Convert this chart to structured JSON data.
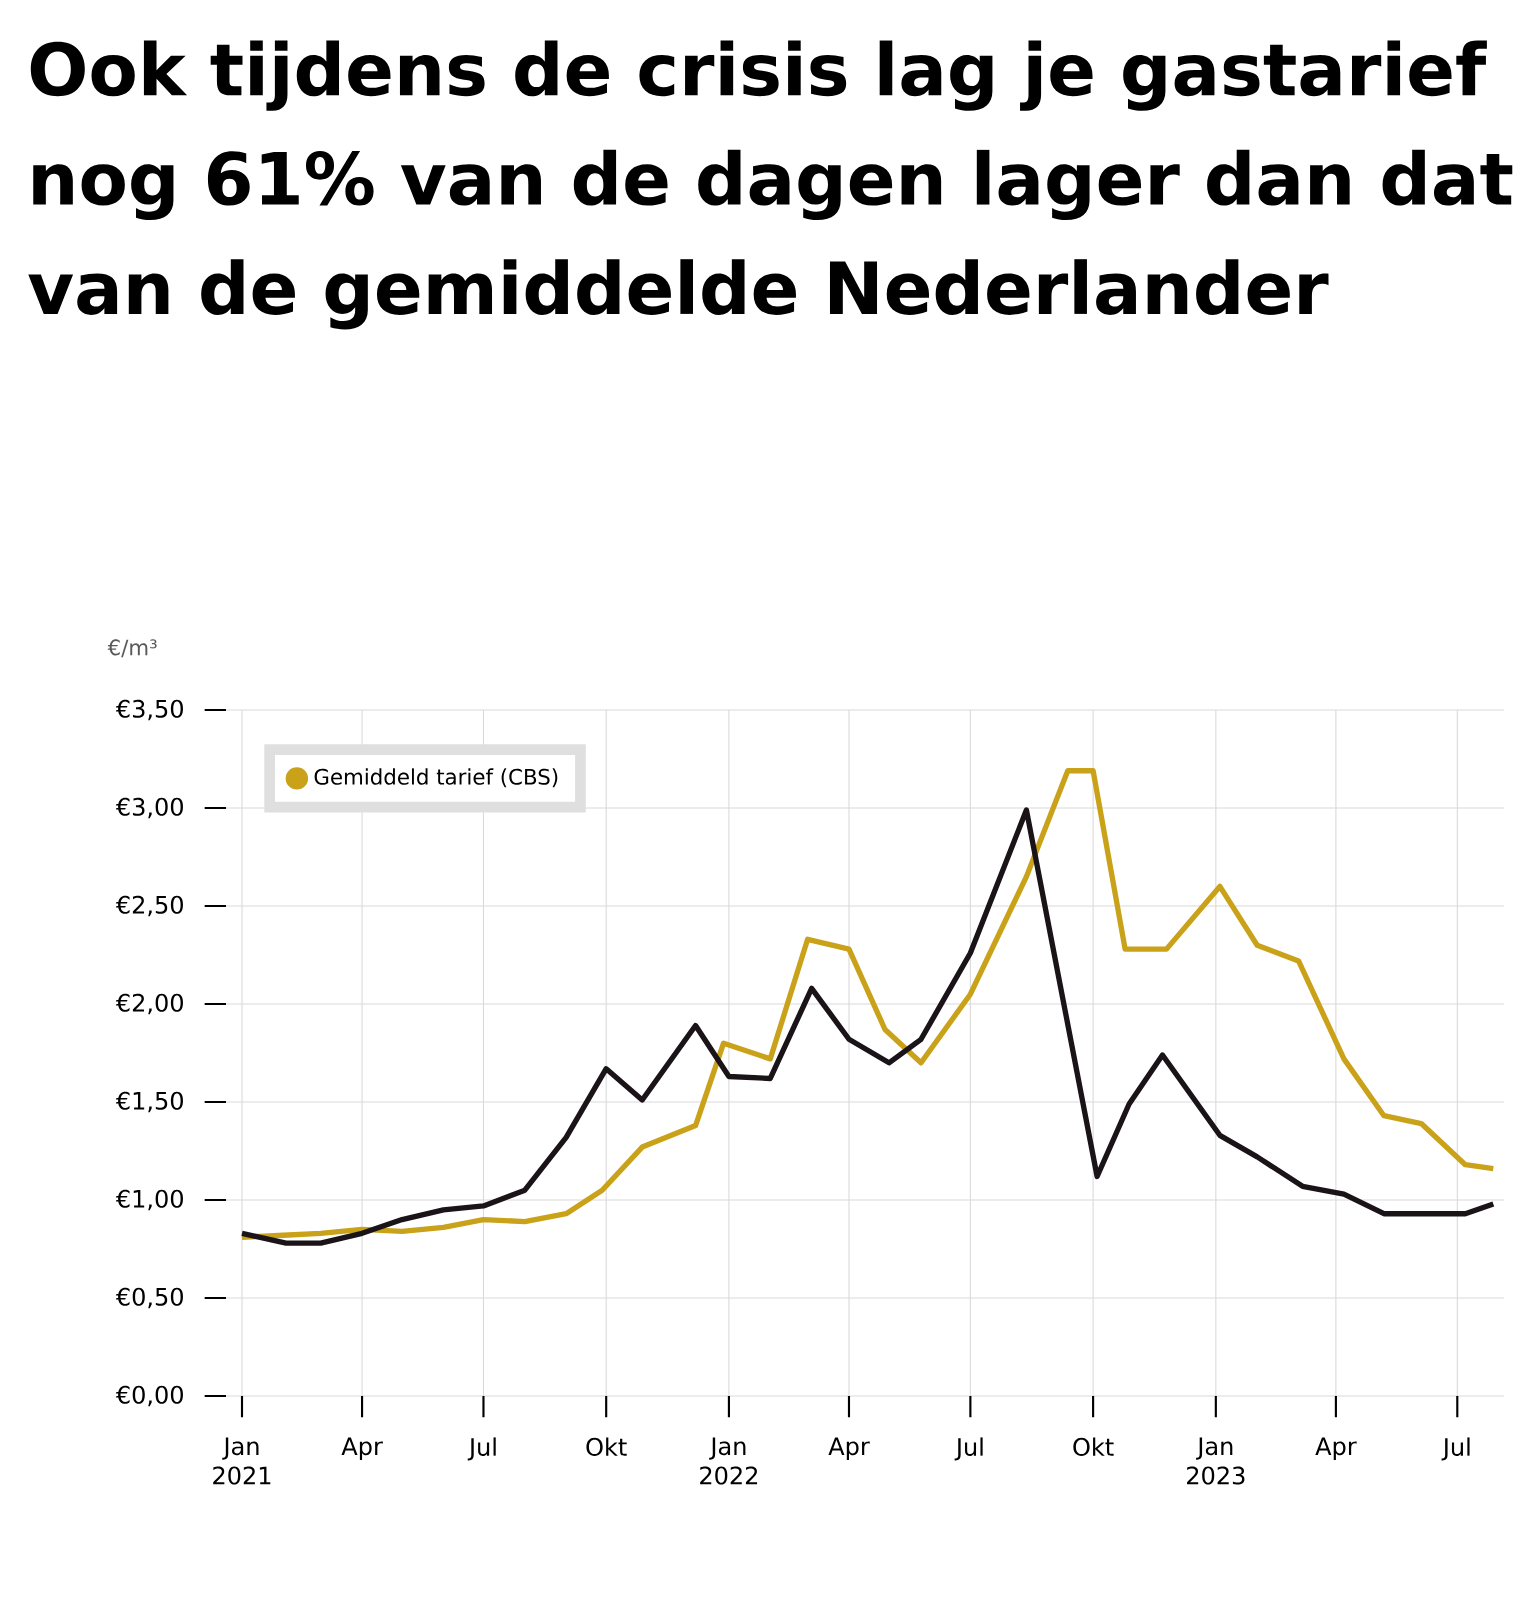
{
  "chart_data": {
    "type": "line",
    "title": "Ook tijdens de crisis lag je gastarief nog 61% van de dagen lager dan dat van de gemiddelde Nederlander",
    "ylabel": "€/m³",
    "xlim": [
      "2020-12-20",
      "2023-08-05"
    ],
    "xticks": [
      {
        "value": "2021-01-01",
        "label": "Jan 2021"
      },
      {
        "value": "2021-04-01",
        "label": "Apr"
      },
      {
        "value": "2021-07-01",
        "label": "Jul"
      },
      {
        "value": "2021-10-01",
        "label": "Okt"
      },
      {
        "value": "2022-01-01",
        "label": "Jan 2022"
      },
      {
        "value": "2022-04-01",
        "label": "Apr"
      },
      {
        "value": "2022-07-01",
        "label": "Jul"
      },
      {
        "value": "2022-10-01",
        "label": "Okt"
      },
      {
        "value": "2023-01-01",
        "label": "Jan 2023"
      },
      {
        "value": "2023-04-01",
        "label": "Apr"
      },
      {
        "value": "2023-07-01",
        "label": "Jul"
      }
    ],
    "ylim": [
      0,
      3.5
    ],
    "yticks": [
      {
        "value": 0,
        "label": "€0,00"
      },
      {
        "value": 0.5,
        "label": "€0,50"
      },
      {
        "value": 1,
        "label": "€1,00"
      },
      {
        "value": 1.5,
        "label": "€1,50"
      },
      {
        "value": 2,
        "label": "€2,00"
      },
      {
        "value": 2.5,
        "label": "€2,50"
      },
      {
        "value": 3,
        "label": "€3,00"
      },
      {
        "value": 3.5,
        "label": "€3,50"
      }
    ],
    "grid": true,
    "legend": "top left",
    "series": [
      {
        "name": "Gemiddeld tarief (CBS)",
        "color": "#c9a21a",
        "x": [
          "2021-01-01",
          "2021-02-01",
          "2021-03-01",
          "2021-04-01",
          "2021-05-01",
          "2021-06-01",
          "2021-07-01",
          "2021-08-01",
          "2021-09-01",
          "2021-09-28",
          "2021-10-28",
          "2021-12-07",
          "2021-12-28",
          "2022-02-01",
          "2022-03-01",
          "2022-04-01",
          "2022-04-28",
          "2022-05-25",
          "2022-07-01",
          "2022-08-12",
          "2022-09-12",
          "2022-10-01",
          "2022-10-25",
          "2022-11-25",
          "2023-01-04",
          "2023-02-01",
          "2023-03-04",
          "2023-04-07",
          "2023-05-07",
          "2023-06-04",
          "2023-07-07",
          "2023-07-28"
        ],
        "values": [
          0.81,
          0.82,
          0.83,
          0.85,
          0.84,
          0.86,
          0.9,
          0.89,
          0.93,
          1.05,
          1.27,
          1.38,
          1.8,
          1.72,
          2.33,
          2.28,
          1.87,
          1.7,
          2.05,
          2.65,
          3.19,
          3.19,
          2.28,
          2.28,
          2.6,
          2.3,
          2.22,
          1.72,
          1.43,
          1.39,
          1.18,
          1.16
        ]
      },
      {
        "color": "#1a1418",
        "x": [
          "2021-01-01",
          "2021-02-03",
          "2021-03-01",
          "2021-04-01",
          "2021-05-01",
          "2021-06-01",
          "2021-07-01",
          "2021-08-01",
          "2021-09-01",
          "2021-10-01",
          "2021-10-28",
          "2021-12-07",
          "2022-01-01",
          "2022-02-01",
          "2022-03-04",
          "2022-04-01",
          "2022-05-01",
          "2022-05-25",
          "2022-07-01",
          "2022-08-12",
          "2022-10-04",
          "2022-10-28",
          "2022-11-22",
          "2023-01-04",
          "2023-02-01",
          "2023-03-07",
          "2023-04-07",
          "2023-05-07",
          "2023-07-07",
          "2023-07-28"
        ],
        "values": [
          0.83,
          0.78,
          0.78,
          0.83,
          0.9,
          0.95,
          0.97,
          1.05,
          1.32,
          1.67,
          1.51,
          1.89,
          1.63,
          1.62,
          2.08,
          1.82,
          1.7,
          1.82,
          2.26,
          2.99,
          1.12,
          1.49,
          1.74,
          1.33,
          1.22,
          1.07,
          1.03,
          0.93,
          0.93,
          0.98
        ]
      }
    ]
  }
}
